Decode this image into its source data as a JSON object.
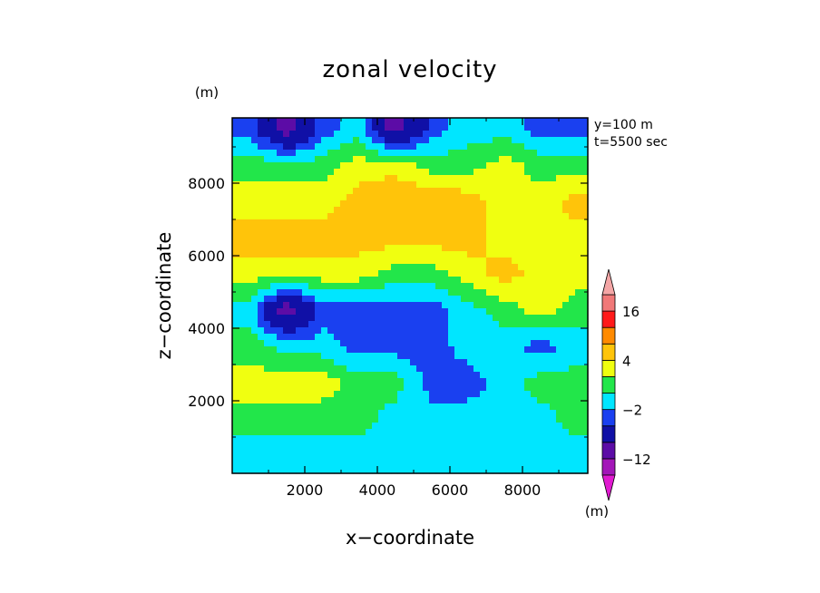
{
  "chart_data": {
    "type": "heatmap",
    "title": "zonal velocity",
    "xlabel": "x−coordinate",
    "ylabel": "z−coordinate",
    "y_unit": "(m)",
    "colorbar_unit": "(m)",
    "annotations": [
      "y=100 m",
      "t=5500 sec"
    ],
    "xlim": [
      0,
      9800
    ],
    "ylim": [
      0,
      9800
    ],
    "x_ticks": [
      2000,
      4000,
      6000,
      8000
    ],
    "x_tick_labels": [
      "2000",
      "4000",
      "6000",
      "8000"
    ],
    "y_ticks": [
      2000,
      4000,
      6000,
      8000
    ],
    "y_tick_labels": [
      "2000",
      "4000",
      "6000",
      "8000"
    ],
    "colorbar": {
      "levels": [
        -20,
        -16,
        -12,
        -8,
        -4,
        -2,
        0,
        2,
        4,
        8,
        12,
        16,
        20
      ],
      "labels": [
        {
          "value": 16,
          "text": "16"
        },
        {
          "value": 4,
          "text": "4"
        },
        {
          "value": -2,
          "text": "−2"
        },
        {
          "value": -12,
          "text": "−12"
        }
      ],
      "colors": [
        "#e01ad0",
        "#a316b8",
        "#5c0ca6",
        "#1010a6",
        "#1a40f0",
        "#00e6ff",
        "#22e64a",
        "#f0ff10",
        "#ffc40a",
        "#ff8a00",
        "#ff1a1a",
        "#f07878",
        "#f4a6a6"
      ],
      "extend": "both"
    },
    "grid": false,
    "field": {
      "x": [
        500,
        1500,
        2500,
        3500,
        4500,
        5500,
        6500,
        7500,
        8500,
        9500
      ],
      "z": [
        500,
        1500,
        2500,
        3500,
        4500,
        5500,
        6500,
        7500,
        8500,
        9500
      ],
      "values": [
        [
          -1,
          -1,
          -1,
          -1,
          -1,
          -1,
          -1,
          -1,
          -1,
          -1
        ],
        [
          1,
          1,
          1,
          1,
          -1,
          -1,
          -1,
          -1,
          -1,
          1
        ],
        [
          3,
          3,
          3,
          1,
          1,
          -3,
          -3,
          -1,
          1,
          1
        ],
        [
          1,
          -1,
          -1,
          -3,
          -3,
          -3,
          -1,
          -1,
          -3,
          -1
        ],
        [
          -1,
          -10,
          -3,
          -3,
          -3,
          -3,
          -1,
          1,
          3,
          1
        ],
        [
          3,
          3,
          3,
          3,
          1,
          1,
          3,
          5,
          3,
          3
        ],
        [
          5,
          5,
          5,
          5,
          5,
          5,
          5,
          3,
          3,
          3
        ],
        [
          3,
          3,
          3,
          5,
          6,
          6,
          5,
          3,
          3,
          5
        ],
        [
          1,
          1,
          1,
          3,
          3,
          1,
          1,
          3,
          1,
          1
        ],
        [
          -3,
          -10,
          -3,
          -1,
          -10,
          -3,
          -1,
          -1,
          -3,
          -3
        ]
      ]
    }
  }
}
